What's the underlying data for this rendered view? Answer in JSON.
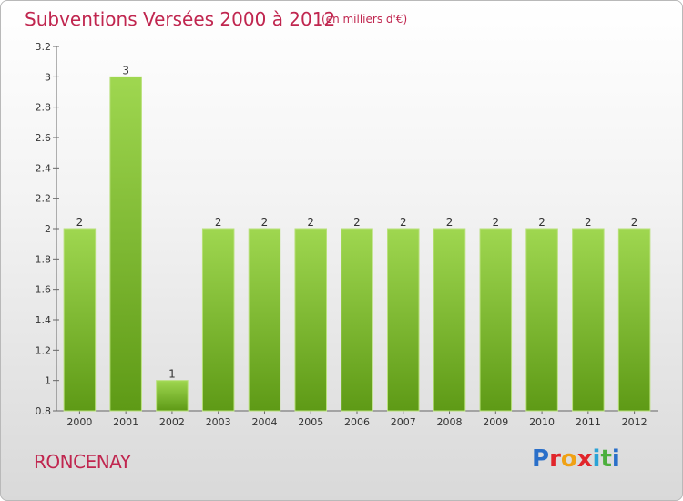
{
  "header": {
    "title": "Subventions Versées 2000 à 2012",
    "unit": "(en milliers d'€)"
  },
  "footer": {
    "commune": "RONCENAY",
    "logo": "Proxiti"
  },
  "colors": {
    "title": "#c0264f",
    "bar_top": "#9fd750",
    "bar_bottom": "#5e9a16",
    "logo": [
      "#2a6fc9",
      "#e1252b",
      "#f0a114",
      "#e1252b",
      "#2aa3d6",
      "#4caf3c",
      "#2a6fc9"
    ]
  },
  "chart_data": {
    "type": "bar",
    "title": "Subventions Versées 2000 à 2012",
    "xlabel": "",
    "ylabel": "",
    "categories": [
      "2000",
      "2001",
      "2002",
      "2003",
      "2004",
      "2005",
      "2006",
      "2007",
      "2008",
      "2009",
      "2010",
      "2011",
      "2012"
    ],
    "values": [
      2,
      3,
      1,
      2,
      2,
      2,
      2,
      2,
      2,
      2,
      2,
      2,
      2
    ],
    "data_labels": [
      "2",
      "3",
      "1",
      "2",
      "2",
      "2",
      "2",
      "2",
      "2",
      "2",
      "2",
      "2",
      "2"
    ],
    "ylim": [
      0.8,
      3.2
    ],
    "yticks": [
      0.8,
      1,
      1.2,
      1.4,
      1.6,
      1.8,
      2,
      2.2,
      2.4,
      2.6,
      2.8,
      3,
      3.2
    ],
    "ytick_labels": [
      "0.8",
      "1",
      "1.2",
      "1.4",
      "1.6",
      "1.8",
      "2",
      "2.2",
      "2.4",
      "2.6",
      "2.8",
      "3",
      "3.2"
    ],
    "grid": false,
    "legend": "none"
  }
}
